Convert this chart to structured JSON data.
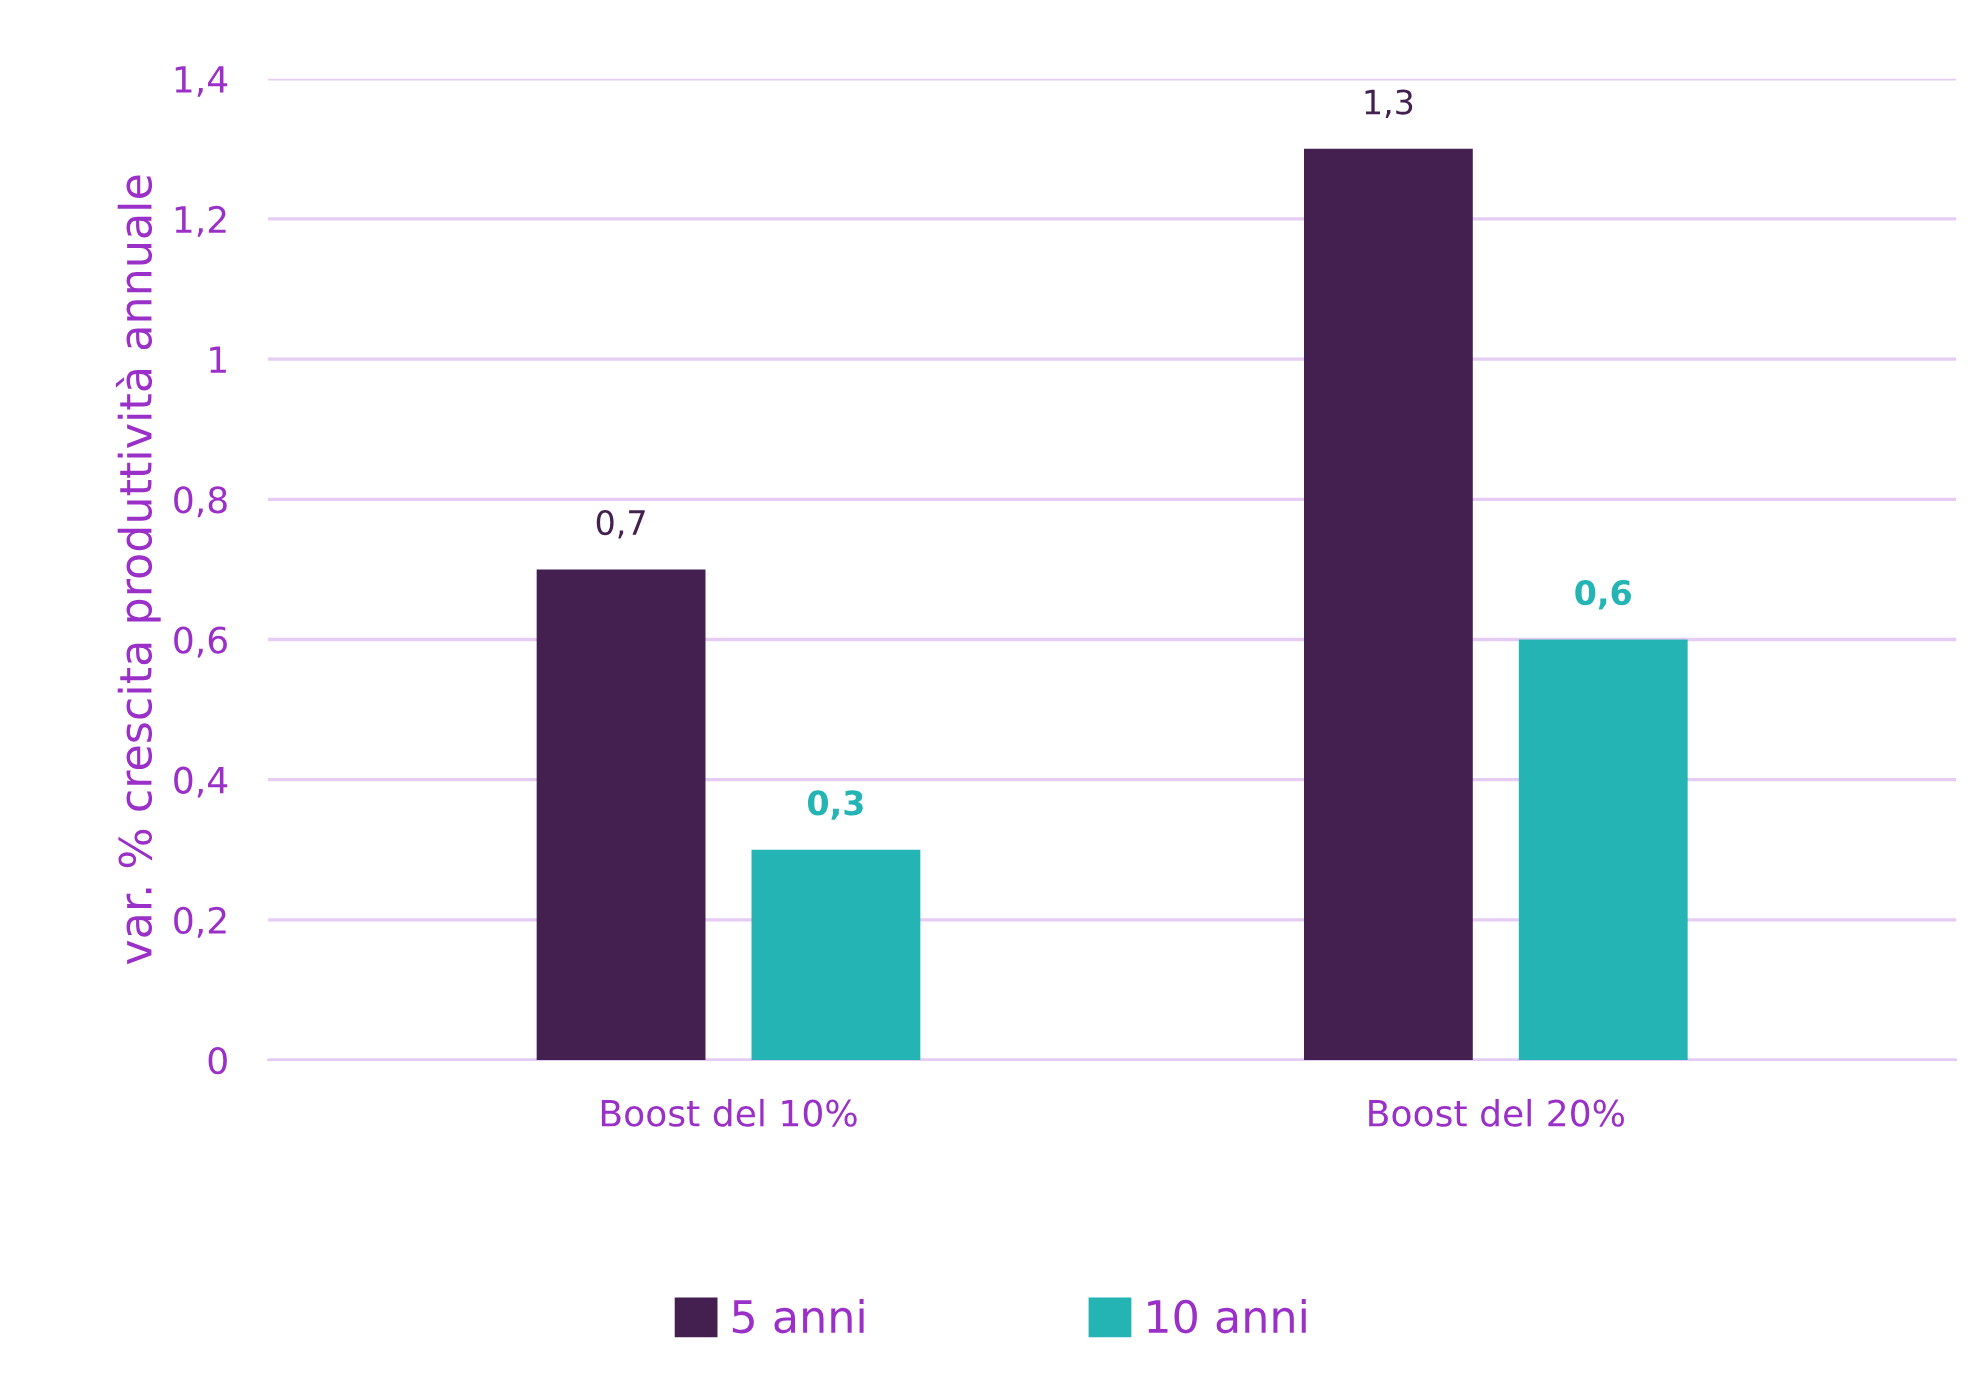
{
  "chart_data": {
    "type": "bar",
    "ylabel": "var. % crescita produttività annuale",
    "categories": [
      "Boost del 10%",
      "Boost del 20%"
    ],
    "series": [
      {
        "name": "5 anni",
        "color": "#43204f",
        "values": [
          0.7,
          1.3
        ],
        "value_labels": [
          "0,7",
          "1,3"
        ]
      },
      {
        "name": "10 anni",
        "color": "#24b4b4",
        "values": [
          0.3,
          0.6
        ],
        "value_labels": [
          "0,3",
          "0,6"
        ]
      }
    ],
    "ylim": [
      0,
      1.4
    ],
    "yticks": [
      0,
      {
        "value": 0.2,
        "label": "0,2"
      },
      {
        "value": 0.4,
        "label": "0,4"
      },
      {
        "value": 0.6,
        "label": "0,6"
      },
      {
        "value": 0.8,
        "label": "0,8"
      },
      1,
      {
        "value": 1.2,
        "label": "1,2"
      },
      {
        "value": 1.4,
        "label": "1,4"
      }
    ],
    "grid": "y",
    "legend": "bottom"
  }
}
